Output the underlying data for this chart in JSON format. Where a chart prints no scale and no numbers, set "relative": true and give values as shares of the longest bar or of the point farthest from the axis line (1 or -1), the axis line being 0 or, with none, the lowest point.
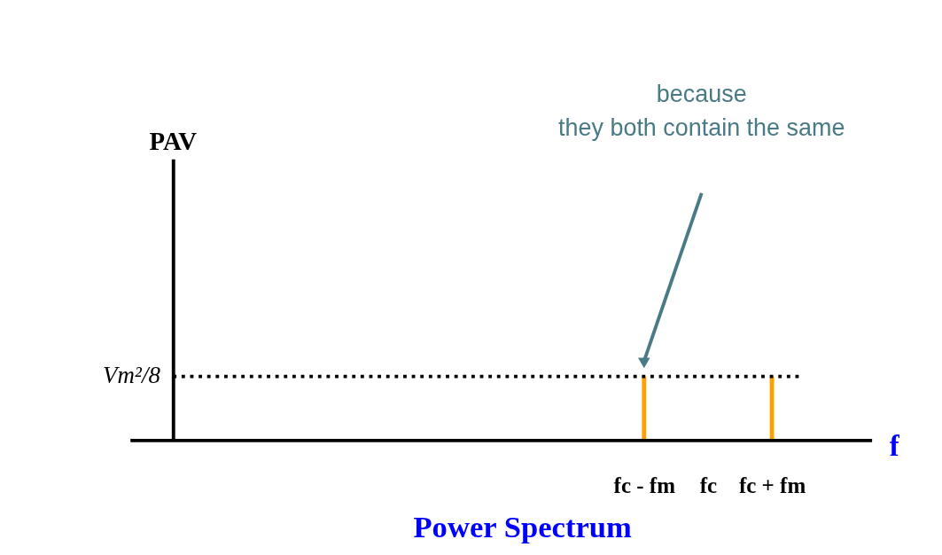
{
  "chart_data": {
    "type": "bar",
    "relative": true,
    "title": "Power Spectrum",
    "xlabel": "f",
    "categories": [
      "fc - fm",
      "fc",
      "fc + fm"
    ],
    "values": [
      1,
      null,
      1
    ],
    "color": "#ffa000",
    "ref_lines": [
      {
        "axis": "y",
        "value": 1,
        "label": "Vm²/8",
        "line_style": "dotted",
        "color": "#000000"
      }
    ],
    "annotations": [
      "PAV",
      "because\nthey both contain the same"
    ],
    "grid": false
  }
}
